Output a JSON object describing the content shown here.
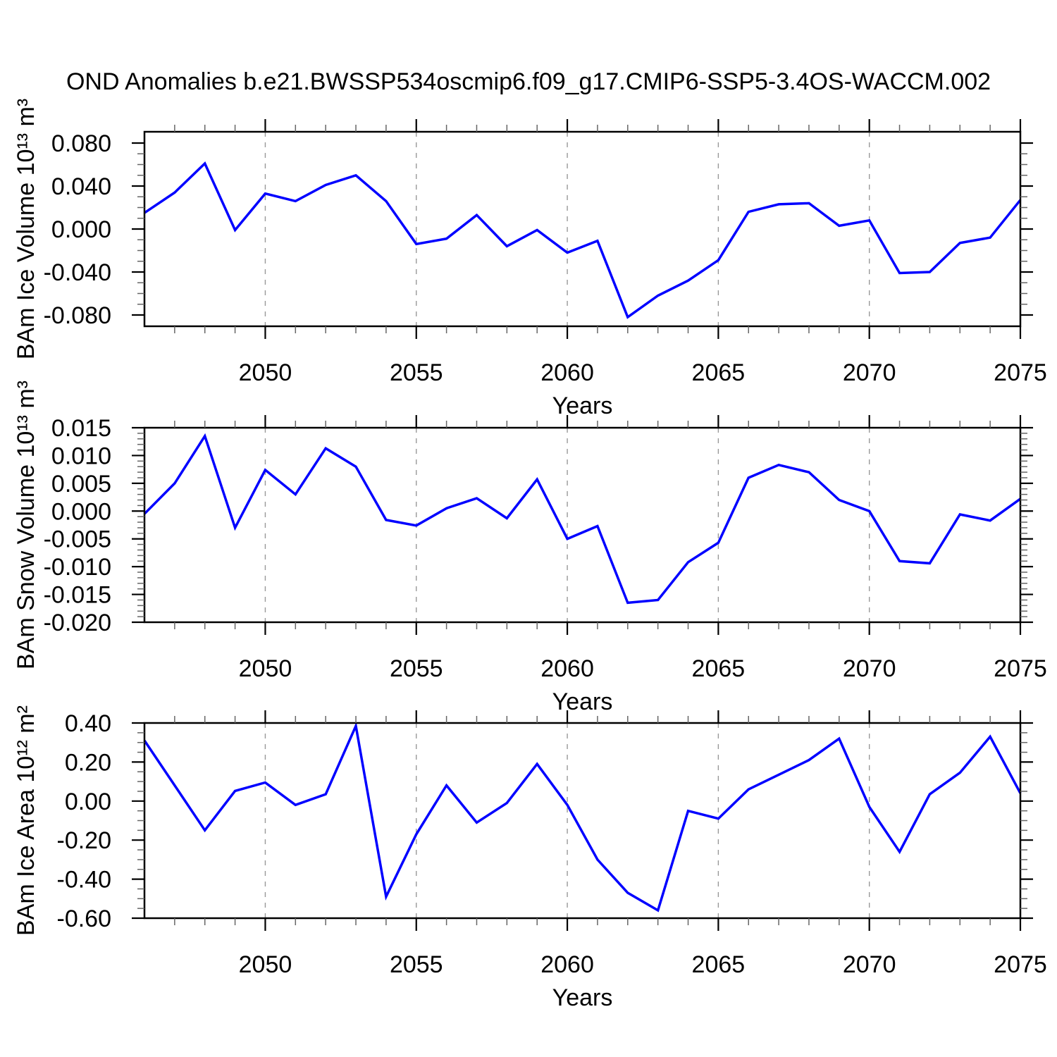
{
  "title": "OND Anomalies b.e21.BWSSP534oscmip6.f09_g17.CMIP6-SSP5-3.4OS-WACCM.002",
  "line_color": "#0000ff",
  "grid_color": "#999999",
  "axis_color": "#000000",
  "chart_data": [
    {
      "type": "line",
      "name": "ice-volume",
      "ylabel": "BAm Ice Volume 10¹³ m³",
      "xlabel": "Years",
      "xlim": [
        2046,
        2075
      ],
      "ylim": [
        -0.0905,
        0.0905
      ],
      "x_major_ticks": [
        2050,
        2055,
        2060,
        2065,
        2070,
        2075
      ],
      "x_tick_labels": [
        "2050",
        "2055",
        "2060",
        "2065",
        "2070",
        "2075"
      ],
      "x_minor_step": 1,
      "y_major_ticks": [
        0.08,
        0.04,
        0.0,
        -0.04,
        -0.08
      ],
      "y_tick_labels": [
        "0.080",
        "0.040",
        "0.000",
        "-0.040",
        "-0.080"
      ],
      "y_minor_step": 0.01,
      "grid_x": [
        2050,
        2055,
        2060,
        2065,
        2070
      ],
      "legend": "none",
      "x": [
        2046,
        2047,
        2048,
        2049,
        2050,
        2051,
        2052,
        2053,
        2054,
        2055,
        2056,
        2057,
        2058,
        2059,
        2060,
        2061,
        2062,
        2063,
        2064,
        2065,
        2066,
        2067,
        2068,
        2069,
        2070,
        2071,
        2072,
        2073,
        2074,
        2075
      ],
      "values": [
        0.015,
        0.034,
        0.061,
        -0.001,
        0.033,
        0.026,
        0.041,
        0.05,
        0.026,
        -0.014,
        -0.009,
        0.013,
        -0.016,
        -0.001,
        -0.022,
        -0.011,
        -0.082,
        -0.062,
        -0.048,
        -0.029,
        0.016,
        0.023,
        0.024,
        0.003,
        0.008,
        -0.041,
        -0.04,
        -0.013,
        -0.008,
        0.027
      ]
    },
    {
      "type": "line",
      "name": "snow-volume",
      "ylabel": "BAm Snow Volume 10¹³ m³",
      "xlabel": "Years",
      "xlim": [
        2046,
        2075
      ],
      "ylim": [
        -0.02,
        0.015
      ],
      "x_major_ticks": [
        2050,
        2055,
        2060,
        2065,
        2070,
        2075
      ],
      "x_tick_labels": [
        "2050",
        "2055",
        "2060",
        "2065",
        "2070",
        "2075"
      ],
      "x_minor_step": 1,
      "y_major_ticks": [
        0.015,
        0.01,
        0.005,
        0.0,
        -0.005,
        -0.01,
        -0.015,
        -0.02
      ],
      "y_tick_labels": [
        "0.015",
        "0.010",
        "0.005",
        "0.000",
        "-0.005",
        "-0.010",
        "-0.015",
        "-0.020"
      ],
      "y_minor_step": 0.001,
      "grid_x": [
        2050,
        2055,
        2060,
        2065,
        2070
      ],
      "legend": "none",
      "x": [
        2046,
        2047,
        2048,
        2049,
        2050,
        2051,
        2052,
        2053,
        2054,
        2055,
        2056,
        2057,
        2058,
        2059,
        2060,
        2061,
        2062,
        2063,
        2064,
        2065,
        2066,
        2067,
        2068,
        2069,
        2070,
        2071,
        2072,
        2073,
        2074,
        2075
      ],
      "values": [
        -0.0005,
        0.005,
        0.0135,
        -0.003,
        0.0074,
        0.003,
        0.0113,
        0.008,
        -0.0016,
        -0.0026,
        0.0005,
        0.0023,
        -0.0013,
        0.0057,
        -0.005,
        -0.0027,
        -0.0165,
        -0.016,
        -0.0092,
        -0.0057,
        0.006,
        0.0083,
        0.007,
        0.002,
        0.0,
        -0.009,
        -0.0094,
        -0.0006,
        -0.0017,
        0.0022
      ]
    },
    {
      "type": "line",
      "name": "ice-area",
      "ylabel": "BAm Ice Area 10¹² m²",
      "xlabel": "Years",
      "xlim": [
        2046,
        2075
      ],
      "ylim": [
        -0.6,
        0.4
      ],
      "x_major_ticks": [
        2050,
        2055,
        2060,
        2065,
        2070,
        2075
      ],
      "x_tick_labels": [
        "2050",
        "2055",
        "2060",
        "2065",
        "2070",
        "2075"
      ],
      "x_minor_step": 1,
      "y_major_ticks": [
        0.4,
        0.2,
        0.0,
        -0.2,
        -0.4,
        -0.6
      ],
      "y_tick_labels": [
        "0.40",
        "0.20",
        "0.00",
        "-0.20",
        "-0.40",
        "-0.60"
      ],
      "y_minor_step": 0.05,
      "grid_x": [
        2050,
        2055,
        2060,
        2065,
        2070
      ],
      "legend": "none",
      "x": [
        2046,
        2047,
        2048,
        2049,
        2050,
        2051,
        2052,
        2053,
        2054,
        2055,
        2056,
        2057,
        2058,
        2059,
        2060,
        2061,
        2062,
        2063,
        2064,
        2065,
        2066,
        2067,
        2068,
        2069,
        2070,
        2071,
        2072,
        2073,
        2074,
        2075
      ],
      "values": [
        0.31,
        0.08,
        -0.15,
        0.052,
        0.095,
        -0.02,
        0.035,
        0.385,
        -0.49,
        -0.17,
        0.08,
        -0.11,
        -0.01,
        0.19,
        -0.02,
        -0.3,
        -0.47,
        -0.56,
        -0.05,
        -0.09,
        0.06,
        0.135,
        0.21,
        0.32,
        -0.03,
        -0.26,
        0.035,
        0.145,
        0.33,
        0.04
      ]
    }
  ]
}
